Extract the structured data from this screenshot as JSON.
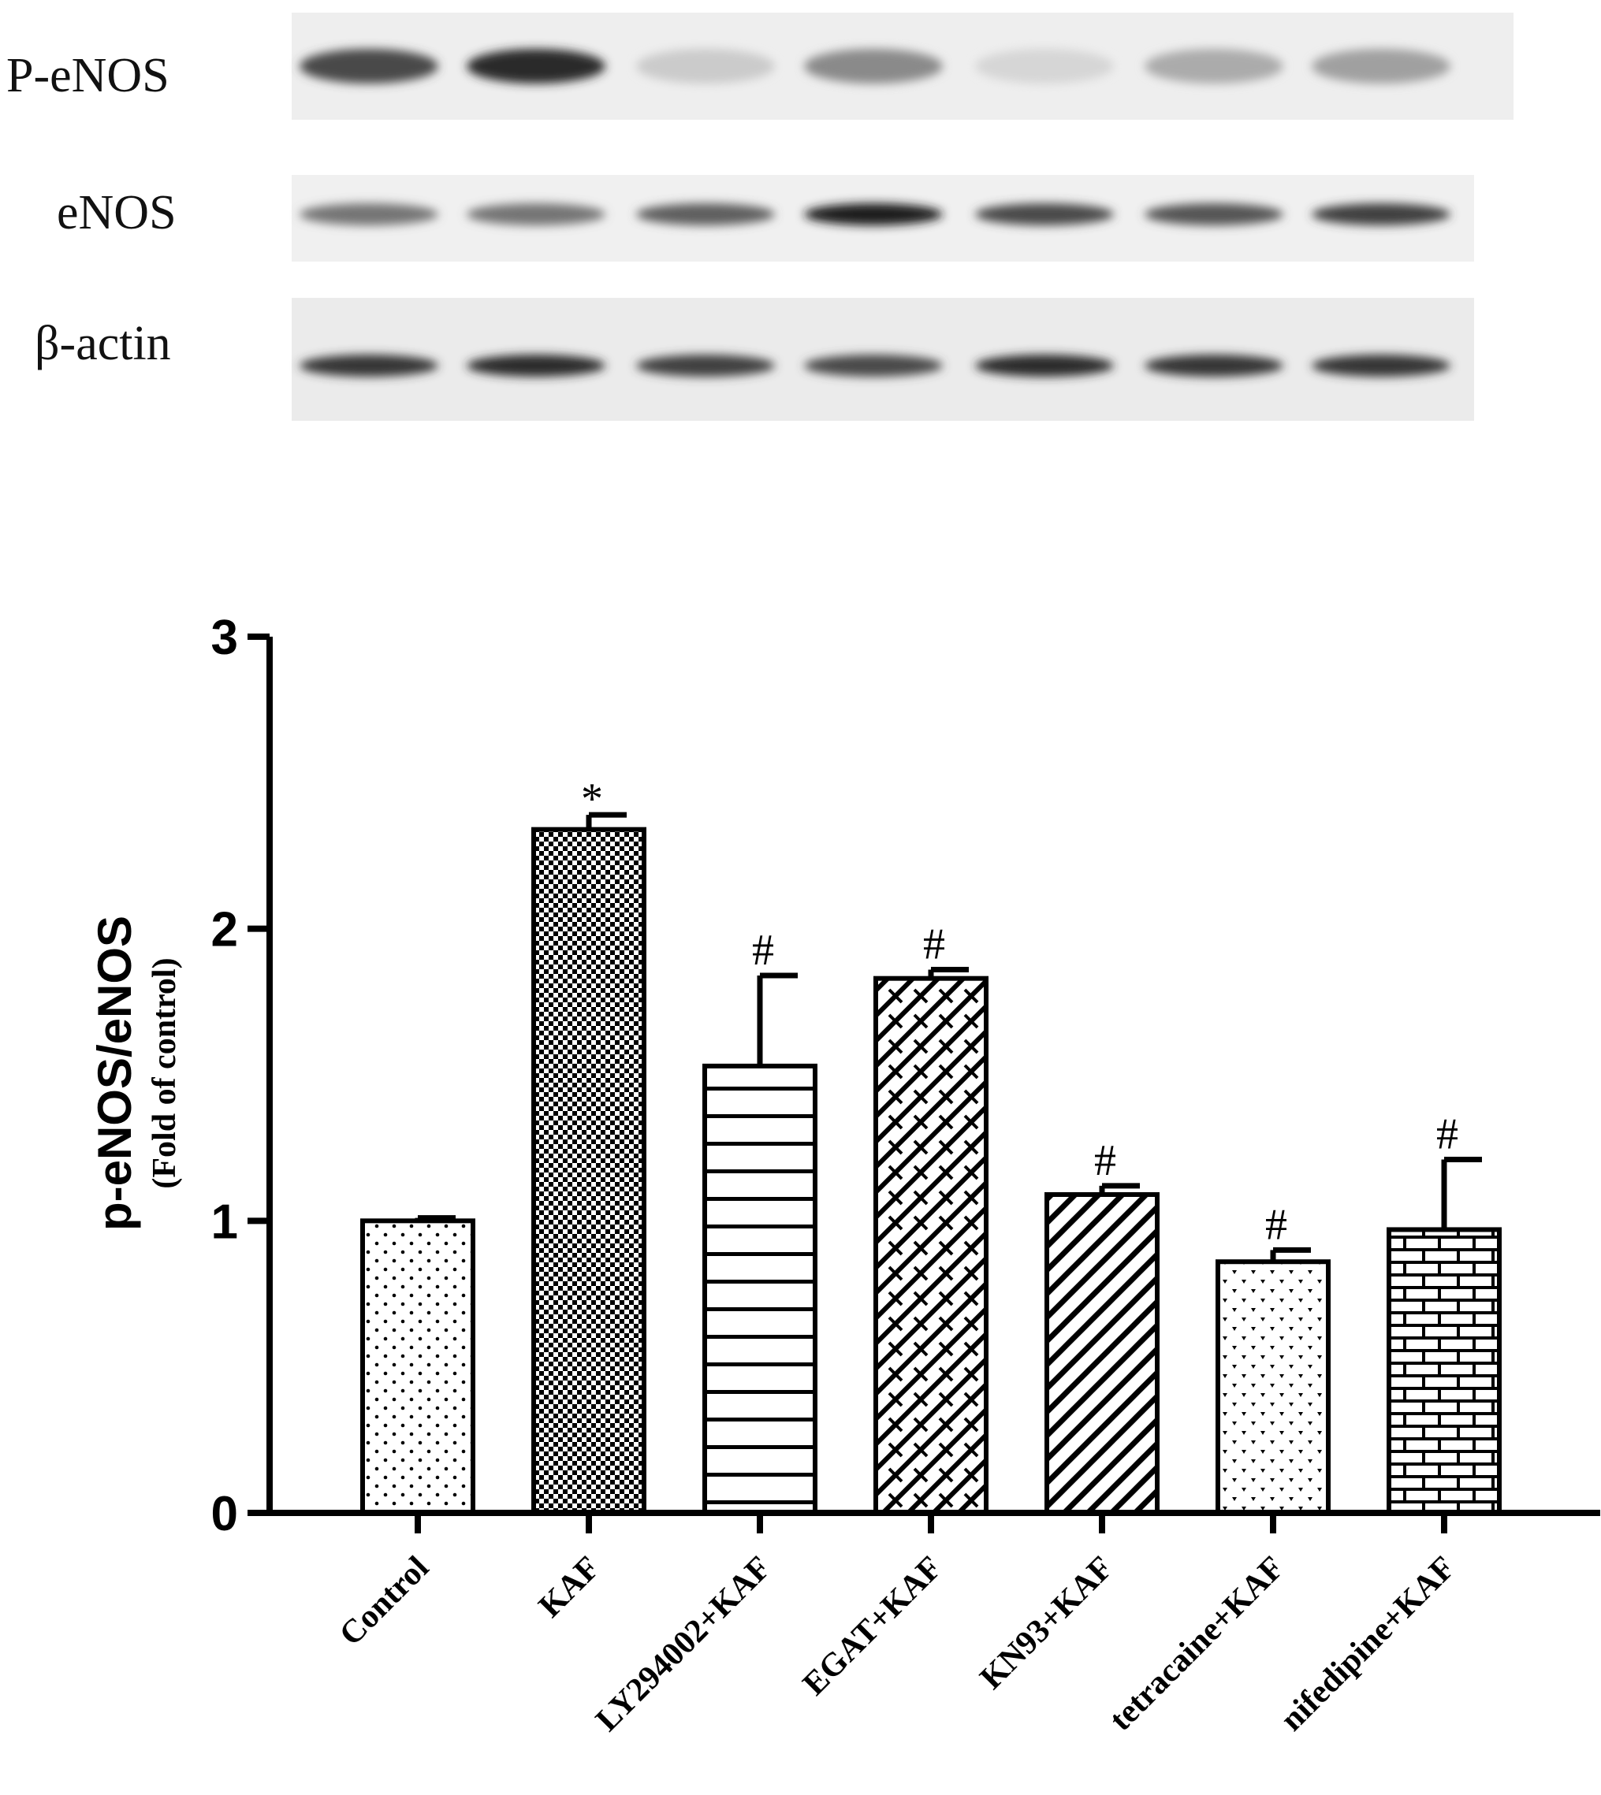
{
  "blot": {
    "rows": [
      {
        "label": "P-eNOS",
        "bands": [
          0.75,
          0.9,
          0.15,
          0.45,
          0.1,
          0.3,
          0.35
        ]
      },
      {
        "label": "eNOS",
        "bands": [
          0.55,
          0.55,
          0.65,
          0.95,
          0.75,
          0.7,
          0.8
        ]
      },
      {
        "label": "β-actin",
        "bands": [
          0.85,
          0.9,
          0.8,
          0.75,
          0.9,
          0.85,
          0.85
        ]
      }
    ]
  },
  "chart_data": {
    "type": "bar",
    "ylabel": "p-eNOS/eNOS",
    "ylabel_sub": "(Fold of control)",
    "ylim": [
      0,
      3
    ],
    "yticks": [
      0,
      1,
      2,
      3
    ],
    "categories": [
      "Control",
      "KAF",
      "LY294002+KAF",
      "EGAT+KAF",
      "KN93+KAF",
      "tetracaine+KAF",
      "nifedipine+KAF"
    ],
    "values": [
      1.0,
      2.34,
      1.53,
      1.83,
      1.09,
      0.86,
      0.97
    ],
    "errors": [
      0.01,
      0.05,
      0.31,
      0.03,
      0.03,
      0.04,
      0.24
    ],
    "significance": [
      "",
      "*",
      "#",
      "#",
      "#",
      "#",
      "#"
    ],
    "patterns": [
      "dots",
      "checker",
      "horizontal-lines",
      "zigzag",
      "diagonal-lines",
      "heart-dots",
      "brick"
    ]
  }
}
